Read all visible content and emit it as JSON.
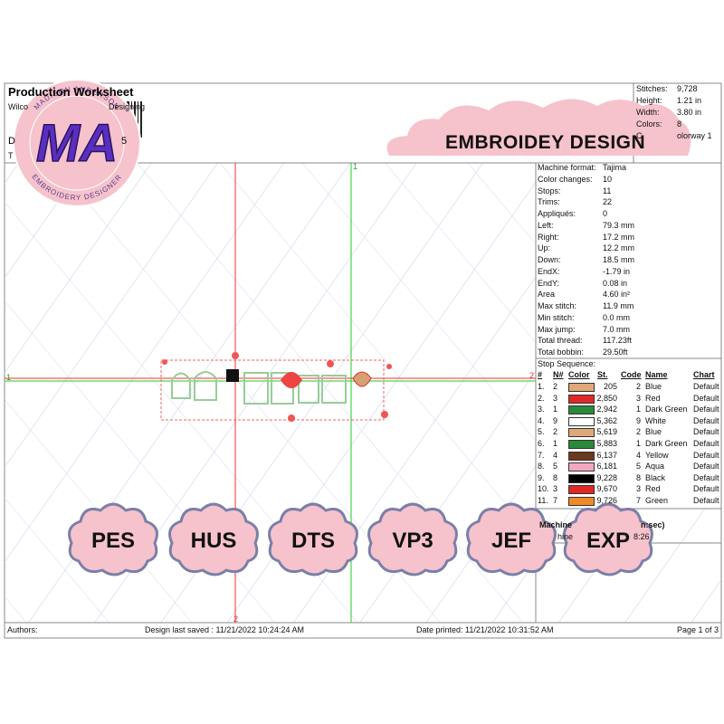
{
  "header": {
    "title": "Production Worksheet",
    "line2_left": "Wilco",
    "line2_right": "Designing",
    "line3_left": "D",
    "line3_right": "5",
    "line4_left": "T"
  },
  "logo": {
    "initials": "MA",
    "top_text": "MADISON ANDERSON",
    "bottom_text": "EMBROIDERY DESIGNER"
  },
  "banner": "EMBROIDEY DESIGN",
  "summary": [
    {
      "label": "Stitches:",
      "value": "9,728"
    },
    {
      "label": "Height:",
      "value": "1.21 in"
    },
    {
      "label": "Width:",
      "value": "3.80 in"
    },
    {
      "label": "Colors:",
      "value": "8"
    },
    {
      "label": "C",
      "value": "olorway 1"
    }
  ],
  "machine_info": [
    {
      "label": "Machine format:",
      "value": "Tajima"
    },
    {
      "label": "Color changes:",
      "value": "10"
    },
    {
      "label": "Stops:",
      "value": "11"
    },
    {
      "label": "Trims:",
      "value": "22"
    },
    {
      "label": "Appliqués:",
      "value": "0"
    },
    {
      "label": "Left:",
      "value": "79.3 mm"
    },
    {
      "label": "Right:",
      "value": "17.2 mm"
    },
    {
      "label": "Up:",
      "value": "12.2 mm"
    },
    {
      "label": "Down:",
      "value": "18.5 mm"
    },
    {
      "label": "EndX:",
      "value": "-1.79 in"
    },
    {
      "label": "EndY:",
      "value": "0.08 in"
    },
    {
      "label": "Area",
      "value": "4.60 in²"
    },
    {
      "label": "Max stitch:",
      "value": "11.9 mm"
    },
    {
      "label": "Min stitch:",
      "value": "0.0 mm"
    },
    {
      "label": "Max jump:",
      "value": "7.0 mm"
    },
    {
      "label": "Total thread:",
      "value": "117.23ft"
    },
    {
      "label": "Total bobbin:",
      "value": "29.50ft"
    }
  ],
  "stop_sequence": {
    "title": "Stop Sequence:",
    "columns": [
      "#",
      "N#",
      "Color",
      "St.",
      "Code",
      "Name",
      "Chart"
    ],
    "rows": [
      {
        "num": "1.",
        "n": "2",
        "color": "#e0a878",
        "st": "205",
        "code": "2",
        "name": "Blue",
        "chart": "Default"
      },
      {
        "num": "2.",
        "n": "3",
        "color": "#e02828",
        "st": "2,850",
        "code": "3",
        "name": "Red",
        "chart": "Default"
      },
      {
        "num": "3.",
        "n": "1",
        "color": "#2a8a3a",
        "st": "2,942",
        "code": "1",
        "name": "Dark Green",
        "chart": "Default"
      },
      {
        "num": "4.",
        "n": "9",
        "color": "#ffffff",
        "st": "5,362",
        "code": "9",
        "name": "White",
        "chart": "Default"
      },
      {
        "num": "5.",
        "n": "2",
        "color": "#e0a878",
        "st": "5,619",
        "code": "2",
        "name": "Blue",
        "chart": "Default"
      },
      {
        "num": "6.",
        "n": "1",
        "color": "#2a8a3a",
        "st": "5,883",
        "code": "1",
        "name": "Dark Green",
        "chart": "Default"
      },
      {
        "num": "7.",
        "n": "4",
        "color": "#6b3a1e",
        "st": "6,137",
        "code": "4",
        "name": "Yellow",
        "chart": "Default"
      },
      {
        "num": "8.",
        "n": "5",
        "color": "#f4a8c0",
        "st": "6,181",
        "code": "5",
        "name": "Aqua",
        "chart": "Default"
      },
      {
        "num": "9.",
        "n": "8",
        "color": "#000000",
        "st": "9,228",
        "code": "8",
        "name": "Black",
        "chart": "Default"
      },
      {
        "num": "10.",
        "n": "3",
        "color": "#e02828",
        "st": "9,670",
        "code": "3",
        "name": "Red",
        "chart": "Default"
      },
      {
        "num": "11.",
        "n": "7",
        "color": "#f08a28",
        "st": "9,726",
        "code": "7",
        "name": "Green",
        "chart": "Default"
      }
    ]
  },
  "runtime": {
    "title_left": "Machine",
    "title_right": "n:sec)",
    "label": "hine",
    "value": "8:26"
  },
  "axis_labels": {
    "top": "1",
    "right": "2",
    "bottom": "2",
    "left": "1"
  },
  "formats": [
    "PES",
    "HUS",
    "DTS",
    "VP3",
    "JEF",
    "EXP"
  ],
  "footer": {
    "authors": "Authors:",
    "saved": "Design last saved : 11/21/2022 10:24:24 AM",
    "printed": "Date printed: 11/21/2022 10:31:52 AM",
    "page": "Page 1 of 3"
  }
}
